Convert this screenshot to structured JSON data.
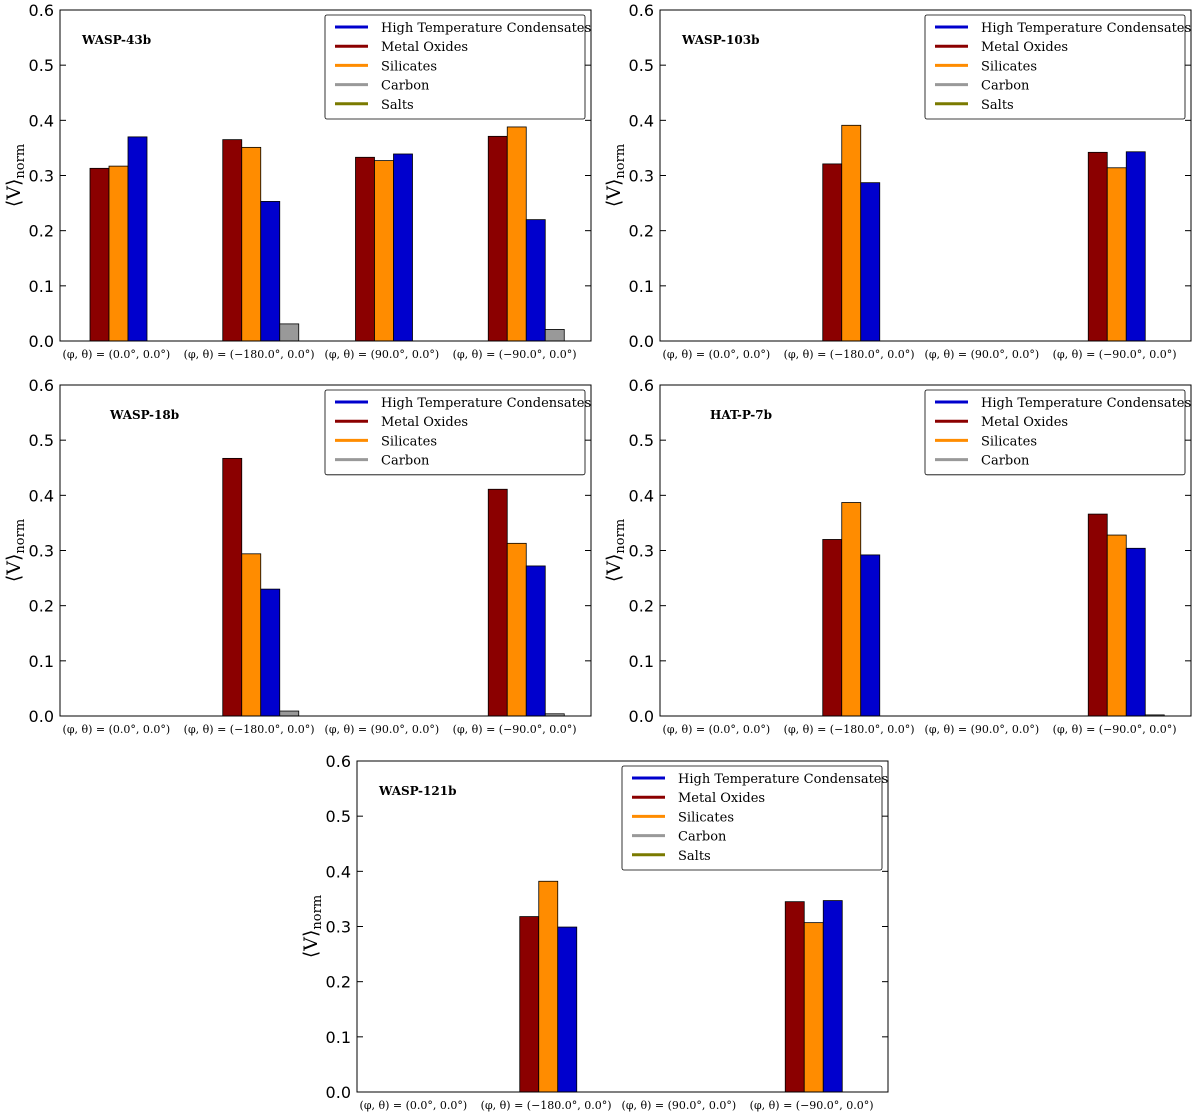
{
  "colors": {
    "High Temperature Condensates": "#0000cd",
    "Metal Oxides": "#8b0000",
    "Silicates": "#ff8c00",
    "Carbon": "#999999",
    "Salts": "#7a7a00"
  },
  "chart_data": [
    {
      "type": "bar",
      "title": "WASP-43b",
      "ylabel": "⟨V⟩",
      "ylabel_sub": "norm",
      "ylim": [
        0,
        0.6
      ],
      "yticks": [
        "0.0",
        "0.1",
        "0.2",
        "0.3",
        "0.4",
        "0.5",
        "0.6"
      ],
      "categories": [
        "(φ, θ) = (0.0°, 0.0°)",
        "(φ, θ) = (−180.0°, 0.0°)",
        "(φ, θ) = (90.0°, 0.0°)",
        "(φ, θ) = (−90.0°, 0.0°)"
      ],
      "legend": [
        "High Temperature Condensates",
        "Metal Oxides",
        "Silicates",
        "Carbon",
        "Salts"
      ],
      "series": [
        {
          "name": "Metal Oxides",
          "values": [
            0.313,
            0.365,
            0.333,
            0.371
          ]
        },
        {
          "name": "Silicates",
          "values": [
            0.317,
            0.351,
            0.327,
            0.388
          ]
        },
        {
          "name": "High Temperature Condensates",
          "values": [
            0.37,
            0.253,
            0.339,
            0.22
          ]
        },
        {
          "name": "Carbon",
          "values": [
            0.0,
            0.031,
            0.0,
            0.021
          ]
        },
        {
          "name": "Salts",
          "values": [
            0.0,
            0.0,
            0.0,
            0.0
          ]
        }
      ]
    },
    {
      "type": "bar",
      "title": "WASP-103b",
      "ylabel": "⟨V⟩",
      "ylabel_sub": "norm",
      "ylim": [
        0,
        0.6
      ],
      "yticks": [
        "0.0",
        "0.1",
        "0.2",
        "0.3",
        "0.4",
        "0.5",
        "0.6"
      ],
      "categories": [
        "(φ, θ) = (0.0°, 0.0°)",
        "(φ, θ) = (−180.0°, 0.0°)",
        "(φ, θ) = (90.0°, 0.0°)",
        "(φ, θ) = (−90.0°, 0.0°)"
      ],
      "legend": [
        "High Temperature Condensates",
        "Metal Oxides",
        "Silicates",
        "Carbon",
        "Salts"
      ],
      "series": [
        {
          "name": "Metal Oxides",
          "values": [
            0.0,
            0.321,
            0.0,
            0.342
          ]
        },
        {
          "name": "Silicates",
          "values": [
            0.0,
            0.391,
            0.0,
            0.314
          ]
        },
        {
          "name": "High Temperature Condensates",
          "values": [
            0.0,
            0.287,
            0.0,
            0.343
          ]
        },
        {
          "name": "Carbon",
          "values": [
            0.0,
            0.0,
            0.0,
            0.0
          ]
        },
        {
          "name": "Salts",
          "values": [
            0.0,
            0.0,
            0.0,
            0.0
          ]
        }
      ]
    },
    {
      "type": "bar",
      "title": "WASP-18b",
      "ylabel": "⟨V⟩",
      "ylabel_sub": "norm",
      "ylim": [
        0,
        0.6
      ],
      "yticks": [
        "0.0",
        "0.1",
        "0.2",
        "0.3",
        "0.4",
        "0.5",
        "0.6"
      ],
      "categories": [
        "(φ, θ) = (0.0°, 0.0°)",
        "(φ, θ) = (−180.0°, 0.0°)",
        "(φ, θ) = (90.0°, 0.0°)",
        "(φ, θ) = (−90.0°, 0.0°)"
      ],
      "legend": [
        "High Temperature Condensates",
        "Metal Oxides",
        "Silicates",
        "Carbon"
      ],
      "series": [
        {
          "name": "Metal Oxides",
          "values": [
            0.0,
            0.467,
            0.0,
            0.411
          ]
        },
        {
          "name": "Silicates",
          "values": [
            0.0,
            0.294,
            0.0,
            0.313
          ]
        },
        {
          "name": "High Temperature Condensates",
          "values": [
            0.0,
            0.23,
            0.0,
            0.272
          ]
        },
        {
          "name": "Carbon",
          "values": [
            0.0,
            0.009,
            0.0,
            0.004
          ]
        }
      ]
    },
    {
      "type": "bar",
      "title": "HAT-P-7b",
      "ylabel": "⟨V⟩",
      "ylabel_sub": "norm",
      "ylim": [
        0,
        0.6
      ],
      "yticks": [
        "0.0",
        "0.1",
        "0.2",
        "0.3",
        "0.4",
        "0.5",
        "0.6"
      ],
      "categories": [
        "(φ, θ) = (0.0°, 0.0°)",
        "(φ, θ) = (−180.0°, 0.0°)",
        "(φ, θ) = (90.0°, 0.0°)",
        "(φ, θ) = (−90.0°, 0.0°)"
      ],
      "legend": [
        "High Temperature Condensates",
        "Metal Oxides",
        "Silicates",
        "Carbon"
      ],
      "series": [
        {
          "name": "Metal Oxides",
          "values": [
            0.0,
            0.32,
            0.0,
            0.366
          ]
        },
        {
          "name": "Silicates",
          "values": [
            0.0,
            0.387,
            0.0,
            0.328
          ]
        },
        {
          "name": "High Temperature Condensates",
          "values": [
            0.0,
            0.292,
            0.0,
            0.304
          ]
        },
        {
          "name": "Carbon",
          "values": [
            0.0,
            0.0,
            0.0,
            0.002
          ]
        }
      ]
    },
    {
      "type": "bar",
      "title": "WASP-121b",
      "ylabel": "⟨V⟩",
      "ylabel_sub": "norm",
      "ylim": [
        0,
        0.6
      ],
      "yticks": [
        "0.0",
        "0.1",
        "0.2",
        "0.3",
        "0.4",
        "0.5",
        "0.6"
      ],
      "categories": [
        "(φ, θ) = (0.0°, 0.0°)",
        "(φ, θ) = (−180.0°, 0.0°)",
        "(φ, θ) = (90.0°, 0.0°)",
        "(φ, θ) = (−90.0°, 0.0°)"
      ],
      "legend": [
        "High Temperature Condensates",
        "Metal Oxides",
        "Silicates",
        "Carbon",
        "Salts"
      ],
      "series": [
        {
          "name": "Metal Oxides",
          "values": [
            0.0,
            0.318,
            0.0,
            0.345
          ]
        },
        {
          "name": "Silicates",
          "values": [
            0.0,
            0.382,
            0.0,
            0.307
          ]
        },
        {
          "name": "High Temperature Condensates",
          "values": [
            0.0,
            0.299,
            0.0,
            0.347
          ]
        },
        {
          "name": "Carbon",
          "values": [
            0.0,
            0.0,
            0.0,
            0.0
          ]
        },
        {
          "name": "Salts",
          "values": [
            0.0,
            0.0,
            0.0,
            0.0
          ]
        }
      ]
    }
  ]
}
